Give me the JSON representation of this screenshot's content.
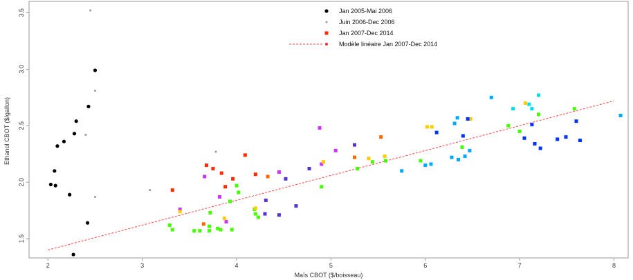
{
  "chart_data": {
    "type": "scatter",
    "xlabel": "Maïs CBOT ($/boisseau)",
    "ylabel": "Ethanol CBOT ($/gallon)",
    "xlim": [
      1.8,
      8.15
    ],
    "ylim": [
      1.33,
      3.6
    ],
    "x_ticks": [
      2,
      3,
      4,
      5,
      6,
      7,
      8
    ],
    "y_ticks": [
      1.5,
      2.0,
      2.5,
      3.0,
      3.5
    ],
    "x_tick_labels": [
      "2",
      "3",
      "4",
      "5",
      "6",
      "7",
      "8"
    ],
    "y_tick_labels": [
      "1.5",
      "2.0",
      "2.5",
      "3.0",
      "3.5"
    ],
    "legend_position": "top-center",
    "legend": [
      {
        "label": "Jan 2005-Mai 2006",
        "marker": "circle",
        "color": "#000000"
      },
      {
        "label": "Juin 2006-Dec 2006",
        "marker": "small-circle",
        "color": "#999999"
      },
      {
        "label": "Jan 2007-Dec 2014",
        "marker": "square",
        "color": "#ff2a00"
      },
      {
        "label": "Modèle linéaire Jan 2007-Dec 2014",
        "marker": "dashed-line",
        "color": "#ff4444"
      }
    ],
    "series": [
      {
        "name": "Jan 2005-Mai 2006",
        "marker": "circle",
        "color": "#000000",
        "points": [
          [
            2.03,
            1.98
          ],
          [
            2.07,
            2.1
          ],
          [
            2.08,
            1.97
          ],
          [
            2.1,
            2.32
          ],
          [
            2.17,
            2.36
          ],
          [
            2.23,
            1.89
          ],
          [
            2.28,
            2.43
          ],
          [
            2.3,
            2.54
          ],
          [
            2.27,
            1.36
          ],
          [
            2.42,
            1.64
          ],
          [
            2.43,
            2.67
          ],
          [
            2.5,
            2.99
          ]
        ]
      },
      {
        "name": "Juin 2006-Dec 2006",
        "marker": "small-circle",
        "color": "#999999",
        "points": [
          [
            2.4,
            2.42
          ],
          [
            2.45,
            3.52
          ],
          [
            2.5,
            2.81
          ],
          [
            2.5,
            1.87
          ],
          [
            3.08,
            1.93
          ],
          [
            3.78,
            2.27
          ]
        ]
      },
      {
        "name": "Jan 2007-Dec 2014",
        "marker": "square",
        "points": [
          [
            3.32,
            1.93,
            "#ff2a00"
          ],
          [
            3.68,
            2.15,
            "#ff2a00"
          ],
          [
            3.75,
            2.12,
            "#ff2a00"
          ],
          [
            3.84,
            2.08,
            "#ff2a00"
          ],
          [
            3.88,
            1.96,
            "#ff2a00"
          ],
          [
            3.96,
            2.03,
            "#ff2a00"
          ],
          [
            4.09,
            2.24,
            "#ff2a00"
          ],
          [
            4.2,
            2.07,
            "#ff2a00"
          ],
          [
            3.65,
            1.63,
            "#ff6600"
          ],
          [
            4.33,
            2.05,
            "#ff6600"
          ],
          [
            5.25,
            2.22,
            "#ff6600"
          ],
          [
            5.53,
            2.4,
            "#ff6600"
          ],
          [
            3.4,
            1.76,
            "#cc33ff"
          ],
          [
            3.66,
            2.05,
            "#cc33ff"
          ],
          [
            3.82,
            1.87,
            "#cc33ff"
          ],
          [
            3.89,
            1.65,
            "#cc33ff"
          ],
          [
            4.45,
            2.09,
            "#cc33ff"
          ],
          [
            4.88,
            2.48,
            "#cc33ff"
          ],
          [
            4.9,
            2.16,
            "#cc33ff"
          ],
          [
            5.05,
            2.28,
            "#cc33ff"
          ],
          [
            4.3,
            1.72,
            "#5533cc"
          ],
          [
            4.31,
            1.84,
            "#5533cc"
          ],
          [
            4.45,
            1.71,
            "#5533cc"
          ],
          [
            4.52,
            2.03,
            "#5533cc"
          ],
          [
            4.63,
            1.79,
            "#5533cc"
          ],
          [
            4.77,
            2.12,
            "#5533cc"
          ],
          [
            5.25,
            2.33,
            "#5533cc"
          ],
          [
            3.29,
            1.62,
            "#44ff00"
          ],
          [
            3.32,
            1.58,
            "#44ff00"
          ],
          [
            3.55,
            1.57,
            "#44ff00"
          ],
          [
            3.61,
            1.57,
            "#44ff00"
          ],
          [
            3.71,
            1.61,
            "#44ff00"
          ],
          [
            3.71,
            1.57,
            "#44ff00"
          ],
          [
            3.72,
            1.73,
            "#44ff00"
          ],
          [
            3.8,
            1.59,
            "#44ff00"
          ],
          [
            3.83,
            1.58,
            "#44ff00"
          ],
          [
            3.93,
            1.83,
            "#44ff00"
          ],
          [
            3.95,
            1.58,
            "#44ff00"
          ],
          [
            4.0,
            1.97,
            "#44ff00"
          ],
          [
            4.02,
            1.91,
            "#44ff00"
          ],
          [
            4.19,
            1.76,
            "#44ff00"
          ],
          [
            4.2,
            1.72,
            "#44ff00"
          ],
          [
            4.23,
            1.69,
            "#44ff00"
          ],
          [
            4.9,
            1.96,
            "#44ff00"
          ],
          [
            5.28,
            2.12,
            "#44ff00"
          ],
          [
            5.44,
            2.18,
            "#44ff00"
          ],
          [
            5.58,
            2.19,
            "#44ff00"
          ],
          [
            5.95,
            2.19,
            "#44ff00"
          ],
          [
            6.39,
            2.31,
            "#44ff00"
          ],
          [
            6.88,
            2.5,
            "#44ff00"
          ],
          [
            7.0,
            2.45,
            "#44ff00"
          ],
          [
            7.2,
            2.6,
            "#44ff00"
          ],
          [
            7.58,
            2.65,
            "#44ff00"
          ],
          [
            3.4,
            1.74,
            "#ffcc00"
          ],
          [
            3.87,
            1.68,
            "#ffcc00"
          ],
          [
            4.2,
            1.77,
            "#ffcc00"
          ],
          [
            4.92,
            2.18,
            "#ffcc00"
          ],
          [
            5.4,
            2.21,
            "#ffcc00"
          ],
          [
            5.57,
            2.23,
            "#ffcc00"
          ],
          [
            6.02,
            2.49,
            "#ffcc00"
          ],
          [
            6.07,
            2.49,
            "#ffcc00"
          ],
          [
            6.48,
            2.56,
            "#ffcc00"
          ],
          [
            7.06,
            2.7,
            "#ffcc00"
          ],
          [
            5.75,
            2.1,
            "#00aaff"
          ],
          [
            6.0,
            2.15,
            "#00aaff"
          ],
          [
            6.06,
            2.16,
            "#00aaff"
          ],
          [
            6.28,
            2.22,
            "#00aaff"
          ],
          [
            6.31,
            2.52,
            "#00aaff"
          ],
          [
            6.34,
            2.57,
            "#00aaff"
          ],
          [
            6.42,
            2.23,
            "#00aaff"
          ],
          [
            6.47,
            2.28,
            "#00aaff"
          ],
          [
            6.7,
            2.75,
            "#00aaff"
          ],
          [
            8.07,
            2.59,
            "#00aaff"
          ],
          [
            6.35,
            2.2,
            "#00aaff"
          ],
          [
            6.4,
            2.41,
            "#0033ff"
          ],
          [
            6.45,
            2.56,
            "#0033ff"
          ],
          [
            6.12,
            2.44,
            "#0033ff"
          ],
          [
            7.05,
            2.39,
            "#0033ff"
          ],
          [
            7.13,
            2.51,
            "#0033ff"
          ],
          [
            7.16,
            2.34,
            "#0033ff"
          ],
          [
            7.22,
            2.3,
            "#0033ff"
          ],
          [
            7.4,
            2.38,
            "#0033ff"
          ],
          [
            7.49,
            2.4,
            "#0033ff"
          ],
          [
            7.64,
            2.37,
            "#0033ff"
          ],
          [
            7.6,
            2.54,
            "#0033ff"
          ],
          [
            6.93,
            2.65,
            "#00ddee"
          ],
          [
            7.13,
            2.65,
            "#00ddee"
          ],
          [
            7.2,
            2.77,
            "#00ddee"
          ],
          [
            7.1,
            2.69,
            "#00ddee"
          ]
        ]
      }
    ],
    "fit_line": {
      "name": "Modèle linéaire Jan 2007-Dec 2014",
      "color": "#ff4444",
      "x": [
        2.0,
        8.0
      ],
      "y": [
        1.4,
        2.72
      ]
    }
  }
}
